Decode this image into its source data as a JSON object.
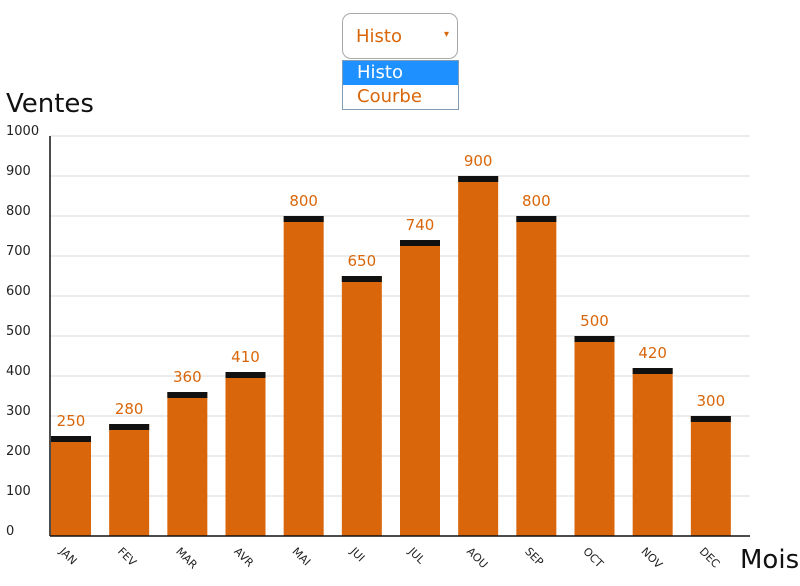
{
  "selector": {
    "value": "Histo",
    "options": [
      "Histo",
      "Courbe"
    ],
    "selected_index": 0
  },
  "colors": {
    "bar": "#d9660a",
    "bar_cap": "#111111",
    "accent": "#d9660a",
    "highlight": "#1e90ff",
    "grid": "#d8d8d8",
    "axis": "#111111"
  },
  "icons": {
    "dropdown_caret": "caret-down-icon"
  },
  "chart_data": {
    "type": "bar",
    "title": "",
    "ylabel": "Ventes",
    "xlabel": "Mois",
    "categories": [
      "JAN",
      "FEV",
      "MAR",
      "AVR",
      "MAI",
      "JUI",
      "JUL",
      "AOU",
      "SEP",
      "OCT",
      "NOV",
      "DEC"
    ],
    "values": [
      250,
      280,
      360,
      410,
      800,
      650,
      740,
      900,
      800,
      500,
      420,
      300
    ],
    "ylim": [
      0,
      1000
    ],
    "yticks": [
      0,
      100,
      200,
      300,
      400,
      500,
      600,
      700,
      800,
      900,
      1000
    ],
    "grid": true,
    "data_labels": true
  }
}
